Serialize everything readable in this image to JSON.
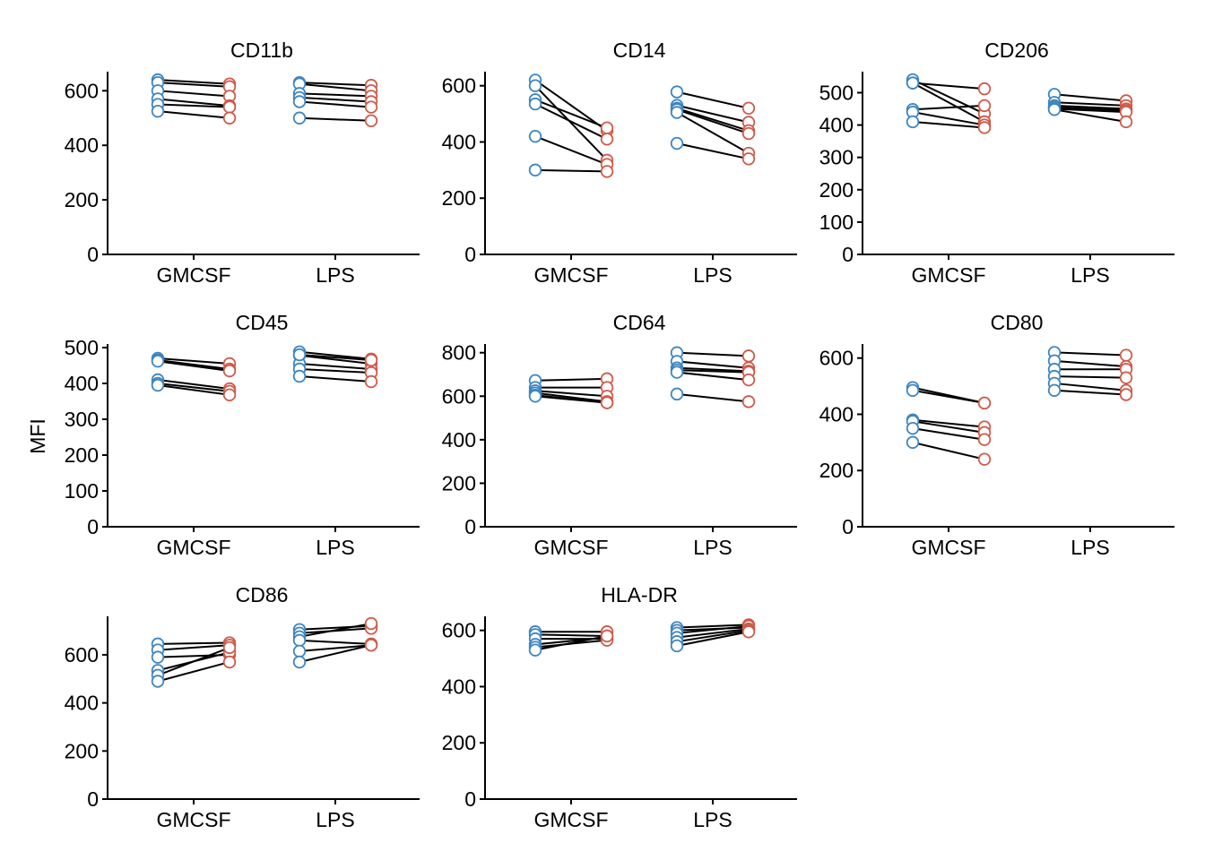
{
  "chart_data": {
    "type": "scatter",
    "ylabel": "MFI",
    "x_categories": [
      "GMCSF",
      "LPS"
    ],
    "colors": {
      "before": "#3d85c0",
      "after": "#cf5a49",
      "line": "#000000"
    },
    "panels": [
      {
        "title": "CD11b",
        "yticks": [
          0,
          200,
          400,
          600
        ],
        "ylim": [
          0,
          670
        ],
        "pairs": {
          "GMCSF": [
            [
              640,
              625
            ],
            [
              630,
              615
            ],
            [
              600,
              580
            ],
            [
              570,
              545
            ],
            [
              550,
              540
            ],
            [
              525,
              500
            ]
          ],
          "LPS": [
            [
              630,
              620
            ],
            [
              625,
              600
            ],
            [
              590,
              580
            ],
            [
              575,
              560
            ],
            [
              560,
              540
            ],
            [
              500,
              490
            ]
          ]
        }
      },
      {
        "title": "CD14",
        "yticks": [
          0,
          200,
          400,
          600
        ],
        "ylim": [
          0,
          650
        ],
        "pairs": {
          "GMCSF": [
            [
              620,
              440
            ],
            [
              600,
              335
            ],
            [
              550,
              450
            ],
            [
              535,
              410
            ],
            [
              420,
              320
            ],
            [
              300,
              295
            ]
          ],
          "LPS": [
            [
              578,
              520
            ],
            [
              530,
              470
            ],
            [
              520,
              440
            ],
            [
              515,
              430
            ],
            [
              505,
              360
            ],
            [
              395,
              340
            ]
          ]
        }
      },
      {
        "title": "CD206",
        "yticks": [
          0,
          100,
          200,
          300,
          400,
          500
        ],
        "ylim": [
          0,
          565
        ],
        "pairs": {
          "GMCSF": [
            [
              540,
              435
            ],
            [
              530,
              512
            ],
            [
              530,
              410
            ],
            [
              448,
              460
            ],
            [
              440,
              400
            ],
            [
              410,
              392
            ]
          ],
          "LPS": [
            [
              495,
              475
            ],
            [
              470,
              460
            ],
            [
              460,
              450
            ],
            [
              455,
              445
            ],
            [
              450,
              440
            ],
            [
              448,
              410
            ]
          ]
        }
      },
      {
        "title": "CD45",
        "yticks": [
          0,
          100,
          200,
          300,
          400,
          500
        ],
        "ylim": [
          0,
          510
        ],
        "pairs": {
          "GMCSF": [
            [
              470,
              455
            ],
            [
              465,
              440
            ],
            [
              462,
              435
            ],
            [
              410,
              385
            ],
            [
              400,
              378
            ],
            [
              395,
              368
            ]
          ],
          "LPS": [
            [
              488,
              468
            ],
            [
              478,
              455
            ],
            [
              455,
              440
            ],
            [
              440,
              430
            ],
            [
              420,
              405
            ],
            [
              480,
              465
            ]
          ]
        }
      },
      {
        "title": "CD64",
        "yticks": [
          0,
          200,
          400,
          600,
          800
        ],
        "ylim": [
          0,
          840
        ],
        "pairs": {
          "GMCSF": [
            [
              672,
              680
            ],
            [
              640,
              640
            ],
            [
              625,
              600
            ],
            [
              615,
              575
            ],
            [
              605,
              570
            ],
            [
              600,
              570
            ]
          ],
          "LPS": [
            [
              800,
              785
            ],
            [
              760,
              730
            ],
            [
              730,
              715
            ],
            [
              720,
              710
            ],
            [
              710,
              675
            ],
            [
              610,
              575
            ]
          ]
        }
      },
      {
        "title": "CD80",
        "yticks": [
          0,
          200,
          400,
          600
        ],
        "ylim": [
          0,
          650
        ],
        "pairs": {
          "GMCSF": [
            [
              495,
              440
            ],
            [
              485,
              440
            ],
            [
              380,
              355
            ],
            [
              375,
              335
            ],
            [
              350,
              310
            ],
            [
              300,
              240
            ]
          ],
          "LPS": [
            [
              620,
              610
            ],
            [
              590,
              570
            ],
            [
              560,
              560
            ],
            [
              535,
              530
            ],
            [
              510,
              485
            ],
            [
              485,
              470
            ]
          ]
        }
      },
      {
        "title": "CD86",
        "yticks": [
          0,
          200,
          400,
          600
        ],
        "ylim": [
          0,
          760
        ],
        "pairs": {
          "GMCSF": [
            [
              645,
              650
            ],
            [
              620,
              640
            ],
            [
              590,
              600
            ],
            [
              535,
              610
            ],
            [
              515,
              630
            ],
            [
              490,
              570
            ]
          ],
          "LPS": [
            [
              705,
              720
            ],
            [
              690,
              710
            ],
            [
              675,
              730
            ],
            [
              660,
              645
            ],
            [
              615,
              640
            ],
            [
              570,
              640
            ]
          ]
        }
      },
      {
        "title": "HLA-DR",
        "yticks": [
          0,
          200,
          400,
          600
        ],
        "ylim": [
          0,
          650
        ],
        "pairs": {
          "GMCSF": [
            [
              595,
              595
            ],
            [
              585,
              580
            ],
            [
              570,
              570
            ],
            [
              550,
              575
            ],
            [
              540,
              565
            ],
            [
              530,
              580
            ]
          ],
          "LPS": [
            [
              610,
              620
            ],
            [
              600,
              610
            ],
            [
              590,
              615
            ],
            [
              575,
              605
            ],
            [
              560,
              600
            ],
            [
              545,
              595
            ]
          ]
        }
      }
    ]
  }
}
